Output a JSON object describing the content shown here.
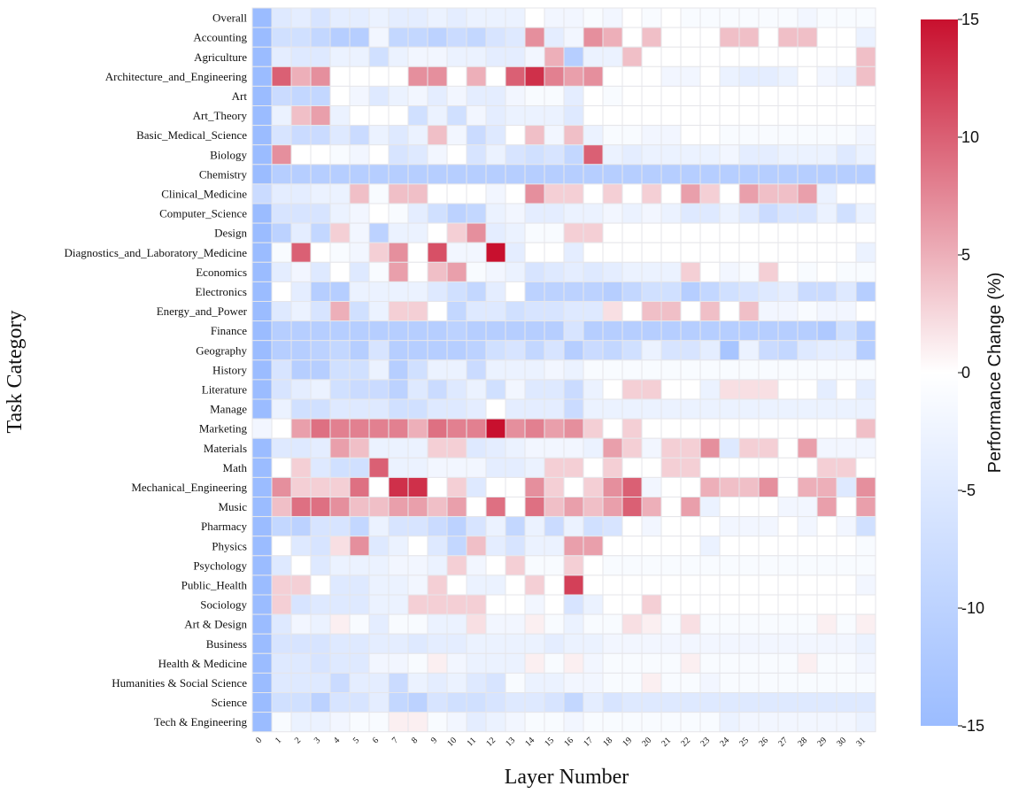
{
  "chart_data": {
    "type": "heatmap",
    "xlabel": "Layer Number",
    "ylabel": "Task Category",
    "colorbar_label": "Performance Change (%)",
    "vmin": -15,
    "vmax": 15,
    "colorbar_ticks": [
      "15",
      "10",
      "5",
      "0",
      "-5",
      "-10",
      "-15"
    ],
    "colors": {
      "low": "#9bbcff",
      "mid": "#ffffff",
      "high": "#c8102e"
    },
    "columns": [
      "0",
      "1",
      "2",
      "3",
      "4",
      "5",
      "6",
      "7",
      "8",
      "9",
      "10",
      "11",
      "12",
      "13",
      "14",
      "15",
      "16",
      "17",
      "18",
      "19",
      "20",
      "21",
      "22",
      "23",
      "24",
      "25",
      "26",
      "27",
      "28",
      "29",
      "30",
      "31"
    ],
    "rows": [
      "Overall",
      "Accounting",
      "Agriculture",
      "Architecture_and_Engineering",
      "Art",
      "Art_Theory",
      "Basic_Medical_Science",
      "Biology",
      "Chemistry",
      "Clinical_Medicine",
      "Computer_Science",
      "Design",
      "Diagnostics_and_Laboratory_Medicine",
      "Economics",
      "Electronics",
      "Energy_and_Power",
      "Finance",
      "Geography",
      "History",
      "Literature",
      "Manage",
      "Marketing",
      "Materials",
      "Math",
      "Mechanical_Engineering",
      "Music",
      "Pharmacy",
      "Physics",
      "Psychology",
      "Public_Health",
      "Sociology",
      "Art & Design",
      "Business",
      "Health & Medicine",
      "Humanities & Social Science",
      "Science",
      "Tech & Engineering"
    ],
    "values": [
      [
        -15,
        -5,
        -4,
        -6,
        -4,
        -4,
        -3,
        -4,
        -4,
        -3,
        -4,
        -3,
        -3,
        -3,
        0,
        -2,
        -2,
        -1,
        -2,
        0,
        -1,
        0,
        -1,
        -1,
        -1,
        -1,
        -1,
        -1,
        -2,
        -1,
        -1,
        -1
      ],
      [
        -15,
        -7,
        -7,
        -9,
        -11,
        -11,
        -2,
        -9,
        -9,
        -10,
        -8,
        -9,
        -6,
        -5,
        7,
        -4,
        -2,
        7,
        5,
        0,
        4,
        0,
        0,
        0,
        4,
        4,
        0,
        4,
        4,
        0,
        0,
        -3
      ],
      [
        -15,
        -4,
        -5,
        -5,
        -3,
        -3,
        -7,
        -3,
        -2,
        -2,
        -3,
        -3,
        -4,
        -4,
        -2,
        5,
        -11,
        -3,
        -3,
        4,
        0,
        0,
        0,
        0,
        0,
        0,
        0,
        0,
        0,
        0,
        0,
        4
      ],
      [
        -15,
        10,
        5,
        7,
        0,
        0,
        0,
        0,
        7,
        7,
        0,
        5,
        0,
        10,
        13,
        8,
        6,
        7,
        0,
        0,
        0,
        -2,
        -2,
        0,
        -3,
        -4,
        -4,
        -3,
        0,
        -2,
        -3,
        4
      ],
      [
        -15,
        -8,
        -9,
        -9,
        0,
        -2,
        -5,
        -3,
        -2,
        -4,
        -2,
        -4,
        -4,
        -2,
        -1,
        -1,
        -4,
        0,
        -1,
        0,
        0,
        0,
        0,
        0,
        0,
        0,
        0,
        0,
        0,
        0,
        0,
        0
      ],
      [
        -15,
        -3,
        4,
        6,
        -3,
        0,
        0,
        0,
        -7,
        -3,
        -7,
        -2,
        -4,
        -3,
        -3,
        -3,
        -5,
        0,
        0,
        0,
        0,
        0,
        0,
        0,
        0,
        0,
        0,
        0,
        0,
        0,
        0,
        0
      ],
      [
        -15,
        -6,
        -8,
        -8,
        -5,
        -8,
        -3,
        -5,
        -3,
        4,
        -2,
        -8,
        -5,
        0,
        4,
        -2,
        4,
        -3,
        -1,
        -1,
        -2,
        -2,
        0,
        0,
        -1,
        -1,
        -1,
        -1,
        -1,
        -1,
        -1,
        -2
      ],
      [
        -15,
        7,
        0,
        0,
        -1,
        -2,
        0,
        -6,
        -5,
        -2,
        0,
        -6,
        -3,
        -6,
        -7,
        -6,
        -9,
        10,
        -3,
        -4,
        -3,
        -3,
        -3,
        -3,
        -2,
        -4,
        -4,
        -3,
        -3,
        -3,
        -5,
        -3
      ],
      [
        -15,
        -11,
        -11,
        -11,
        -11,
        -11,
        -11,
        -11,
        -11,
        -11,
        -11,
        -11,
        -11,
        -11,
        -11,
        -11,
        -11,
        -11,
        -11,
        -11,
        -11,
        -11,
        -11,
        -11,
        -11,
        -11,
        -11,
        -11,
        -11,
        -11,
        -11,
        -11
      ],
      [
        -8,
        -4,
        -4,
        -3,
        -3,
        4,
        -1,
        4,
        4,
        0,
        0,
        0,
        -2,
        0,
        7,
        3,
        3,
        0,
        3,
        0,
        3,
        0,
        6,
        3,
        0,
        6,
        4,
        4,
        6,
        -3,
        0,
        0
      ],
      [
        -15,
        -6,
        -6,
        -6,
        -3,
        -2,
        0,
        -1,
        -4,
        -7,
        -10,
        -9,
        -3,
        -2,
        -4,
        -4,
        -3,
        -3,
        -2,
        -3,
        -2,
        -3,
        -5,
        -5,
        -3,
        -5,
        -8,
        -6,
        -6,
        -3,
        -7,
        -3
      ],
      [
        -15,
        -10,
        -4,
        -9,
        3,
        -2,
        -10,
        -3,
        -3,
        0,
        3,
        7,
        -4,
        -3,
        -1,
        -1,
        3,
        3,
        0,
        0,
        0,
        0,
        0,
        0,
        0,
        0,
        0,
        0,
        0,
        0,
        0,
        0
      ],
      [
        -15,
        -1,
        10,
        0,
        -1,
        -2,
        3,
        7,
        0,
        11,
        -2,
        -2,
        15,
        -4,
        0,
        0,
        -4,
        0,
        0,
        0,
        0,
        0,
        0,
        0,
        0,
        0,
        0,
        0,
        0,
        0,
        0,
        -3
      ],
      [
        -15,
        -4,
        -2,
        -5,
        0,
        -5,
        -1,
        6,
        0,
        4,
        6,
        -1,
        -2,
        -3,
        -6,
        -5,
        -4,
        -5,
        -4,
        -3,
        -3,
        -3,
        3,
        0,
        -2,
        -1,
        3,
        0,
        -1,
        0,
        -1,
        -1
      ],
      [
        -15,
        0,
        -4,
        -11,
        -11,
        -3,
        -3,
        -3,
        -3,
        -5,
        -7,
        -9,
        -4,
        0,
        -10,
        -10,
        -10,
        -10,
        -11,
        -9,
        -7,
        -7,
        -11,
        -9,
        -7,
        -6,
        -5,
        -4,
        -8,
        -8,
        -5,
        -11
      ],
      [
        -15,
        -5,
        -3,
        -6,
        5,
        -7,
        -3,
        3,
        3,
        0,
        -9,
        -5,
        -5,
        -7,
        -6,
        -6,
        -5,
        -5,
        2,
        0,
        4,
        4,
        0,
        4,
        0,
        4,
        -2,
        -2,
        -1,
        -2,
        -2,
        0
      ],
      [
        -15,
        -11,
        -11,
        -11,
        -11,
        -11,
        -11,
        -11,
        -11,
        -11,
        -10,
        -11,
        -11,
        -11,
        -11,
        -11,
        -6,
        -11,
        -11,
        -11,
        -11,
        -11,
        -11,
        -11,
        -11,
        -11,
        -11,
        -11,
        -11,
        -12,
        -7,
        -11
      ],
      [
        -15,
        -11,
        -11,
        -10,
        -9,
        -11,
        -6,
        -11,
        -11,
        -11,
        -11,
        -10,
        -7,
        -6,
        -9,
        -6,
        -11,
        -8,
        -9,
        -7,
        -3,
        -6,
        -6,
        -4,
        -13,
        -3,
        -8,
        -9,
        -5,
        -4,
        -4,
        -11
      ],
      [
        -15,
        -6,
        -11,
        -11,
        -7,
        -7,
        -3,
        -11,
        -7,
        -3,
        -3,
        -8,
        -3,
        -3,
        -3,
        -2,
        -3,
        -1,
        -1,
        -1,
        -1,
        -1,
        -1,
        -1,
        -1,
        -1,
        -1,
        -1,
        -1,
        -1,
        -1,
        -1
      ],
      [
        -15,
        -6,
        -4,
        -3,
        -7,
        -8,
        -8,
        -10,
        -5,
        -8,
        -5,
        -3,
        -7,
        -2,
        -5,
        -5,
        -8,
        -3,
        0,
        3,
        3,
        0,
        0,
        -3,
        2,
        2,
        2,
        0,
        0,
        -4,
        0,
        -4
      ],
      [
        -15,
        -3,
        -7,
        -7,
        -5,
        -5,
        -5,
        -7,
        -7,
        -5,
        -5,
        -4,
        0,
        -4,
        -4,
        -4,
        -8,
        -3,
        -3,
        -3,
        -3,
        -3,
        -3,
        -3,
        -3,
        -3,
        -3,
        -3,
        -3,
        -3,
        -3,
        -3
      ],
      [
        -2,
        0,
        6,
        9,
        8,
        8,
        8,
        8,
        5,
        9,
        8,
        8,
        15,
        7,
        8,
        6,
        7,
        3,
        0,
        3,
        0,
        0,
        0,
        0,
        0,
        0,
        0,
        0,
        0,
        0,
        0,
        4
      ],
      [
        -15,
        -5,
        -5,
        -4,
        6,
        4,
        -3,
        -3,
        -3,
        3,
        3,
        -5,
        -4,
        -3,
        -2,
        -2,
        -2,
        -3,
        6,
        3,
        -2,
        3,
        3,
        7,
        -5,
        3,
        3,
        0,
        6,
        -2,
        -2,
        -2
      ],
      [
        -15,
        0,
        3,
        -5,
        -7,
        -7,
        10,
        -3,
        -3,
        -2,
        -2,
        -2,
        -4,
        -4,
        -3,
        3,
        3,
        0,
        3,
        0,
        0,
        3,
        3,
        0,
        0,
        0,
        0,
        0,
        0,
        3,
        3,
        0
      ],
      [
        -15,
        7,
        3,
        3,
        3,
        9,
        0,
        13,
        13,
        0,
        3,
        -5,
        0,
        0,
        7,
        3,
        0,
        3,
        7,
        10,
        -2,
        0,
        0,
        5,
        4,
        4,
        7,
        0,
        5,
        5,
        -5,
        7
      ],
      [
        -15,
        4,
        9,
        9,
        7,
        4,
        4,
        6,
        6,
        4,
        6,
        0,
        9,
        0,
        9,
        4,
        6,
        4,
        6,
        10,
        5,
        0,
        6,
        -3,
        0,
        0,
        0,
        -2,
        -2,
        6,
        0,
        6
      ],
      [
        -15,
        -9,
        -10,
        -6,
        -6,
        -9,
        -3,
        -6,
        -6,
        -8,
        -10,
        -6,
        -3,
        -9,
        -3,
        -8,
        -3,
        -7,
        -6,
        0,
        -2,
        0,
        0,
        0,
        -2,
        -2,
        -2,
        0,
        -2,
        0,
        -2,
        -7
      ],
      [
        -15,
        0,
        -5,
        -6,
        2,
        7,
        -5,
        -3,
        0,
        -5,
        -9,
        4,
        -4,
        -6,
        -3,
        -3,
        6,
        6,
        0,
        0,
        0,
        0,
        0,
        -3,
        0,
        0,
        0,
        0,
        0,
        0,
        0,
        -1
      ],
      [
        -15,
        -5,
        0,
        -5,
        -3,
        -3,
        -3,
        -2,
        -2,
        -3,
        3,
        -2,
        0,
        3,
        -1,
        -1,
        3,
        0,
        -1,
        -1,
        -1,
        -1,
        -1,
        -1,
        -1,
        -1,
        -1,
        -1,
        -1,
        -1,
        -1,
        -1
      ],
      [
        -15,
        3,
        3,
        0,
        -5,
        -5,
        -3,
        -3,
        -2,
        3,
        0,
        -3,
        -3,
        0,
        3,
        0,
        12,
        0,
        0,
        0,
        0,
        0,
        0,
        0,
        0,
        0,
        0,
        0,
        0,
        0,
        0,
        -2
      ],
      [
        -15,
        3,
        -6,
        -5,
        -5,
        -5,
        -3,
        -3,
        3,
        3,
        3,
        3,
        0,
        0,
        -2,
        0,
        -6,
        -3,
        0,
        0,
        3,
        0,
        0,
        0,
        0,
        0,
        0,
        0,
        0,
        0,
        0,
        0
      ],
      [
        -15,
        -5,
        -2,
        -3,
        1,
        -1,
        -4,
        -1,
        -1,
        -3,
        -3,
        2,
        -2,
        -2,
        1,
        -1,
        -3,
        -1,
        -1,
        2,
        1,
        -1,
        2,
        -1,
        -1,
        -1,
        -1,
        -1,
        -1,
        1,
        -1,
        1
      ],
      [
        -15,
        -6,
        -6,
        -6,
        -5,
        -5,
        -4,
        -4,
        -5,
        -4,
        -4,
        -3,
        -3,
        -3,
        -3,
        -4,
        -3,
        -3,
        -2,
        -2,
        -2,
        -2,
        -2,
        -2,
        -2,
        -2,
        -2,
        -2,
        -2,
        -2,
        -2,
        -3
      ],
      [
        -15,
        -5,
        -5,
        -6,
        -5,
        -5,
        -2,
        -2,
        -1,
        1,
        -2,
        -3,
        -3,
        -3,
        1,
        -1,
        1,
        -2,
        -1,
        -1,
        -1,
        -1,
        1,
        -1,
        -1,
        -1,
        -1,
        -1,
        1,
        -1,
        -1,
        -2
      ],
      [
        -15,
        -5,
        -5,
        -5,
        -8,
        -4,
        -4,
        -8,
        -3,
        -4,
        -3,
        -5,
        -6,
        -1,
        -3,
        -3,
        -2,
        -2,
        -1,
        -1,
        1,
        -1,
        -1,
        -2,
        -1,
        -1,
        -1,
        -1,
        -1,
        -1,
        -1,
        -1
      ],
      [
        -15,
        -7,
        -7,
        -10,
        -6,
        -6,
        -4,
        -9,
        -10,
        -6,
        -7,
        -7,
        -6,
        -5,
        -5,
        -6,
        -9,
        -4,
        -6,
        -5,
        -5,
        -5,
        -5,
        -5,
        -5,
        -5,
        -5,
        -5,
        -5,
        -5,
        -5,
        -5
      ],
      [
        -15,
        -1,
        -3,
        -3,
        -2,
        -1,
        -1,
        1,
        1,
        -1,
        -2,
        -4,
        -3,
        -2,
        -1,
        -1,
        -2,
        -1,
        -1,
        -1,
        -1,
        -1,
        -1,
        -1,
        -3,
        -2,
        -2,
        -2,
        -2,
        -2,
        -2,
        -3
      ]
    ]
  }
}
